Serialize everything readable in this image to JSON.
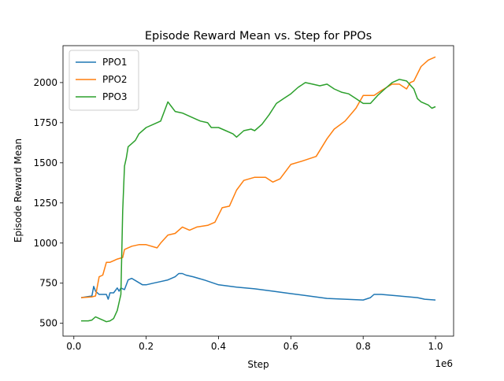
{
  "chart_data": {
    "type": "line",
    "title": "Episode Reward Mean vs. Step for PPOs",
    "xlabel": "Step",
    "ylabel": "Episode Reward Mean",
    "x_offset_label": "1e6",
    "xlim": [
      -0.03,
      1.05
    ],
    "ylim": [
      420,
      2230
    ],
    "xticks": [
      0.0,
      0.2,
      0.4,
      0.6,
      0.8,
      1.0
    ],
    "xtick_labels": [
      "0.0",
      "0.2",
      "0.4",
      "0.6",
      "0.8",
      "1.0"
    ],
    "yticks": [
      500,
      750,
      1000,
      1250,
      1500,
      1750,
      2000
    ],
    "ytick_labels": [
      "500",
      "750",
      "1000",
      "1250",
      "1500",
      "1750",
      "2000"
    ],
    "grid": false,
    "legend_position": "top-left",
    "series": [
      {
        "name": "PPO1",
        "color": "#1f77b4",
        "x": [
          0.02,
          0.05,
          0.055,
          0.06,
          0.07,
          0.08,
          0.09,
          0.095,
          0.1,
          0.11,
          0.12,
          0.125,
          0.13,
          0.14,
          0.15,
          0.16,
          0.175,
          0.19,
          0.2,
          0.22,
          0.24,
          0.26,
          0.28,
          0.29,
          0.3,
          0.31,
          0.33,
          0.36,
          0.4,
          0.45,
          0.5,
          0.55,
          0.6,
          0.65,
          0.7,
          0.75,
          0.8,
          0.82,
          0.83,
          0.85,
          0.9,
          0.95,
          0.97,
          1.0
        ],
        "y": [
          660,
          670,
          730,
          700,
          680,
          680,
          680,
          650,
          690,
          690,
          720,
          700,
          720,
          710,
          770,
          780,
          760,
          740,
          740,
          750,
          760,
          770,
          790,
          810,
          810,
          800,
          790,
          770,
          740,
          725,
          715,
          700,
          685,
          670,
          655,
          650,
          645,
          660,
          680,
          680,
          670,
          660,
          650,
          645
        ]
      },
      {
        "name": "PPO2",
        "color": "#ff7f0e",
        "x": [
          0.02,
          0.05,
          0.06,
          0.07,
          0.08,
          0.09,
          0.1,
          0.11,
          0.12,
          0.135,
          0.14,
          0.16,
          0.18,
          0.2,
          0.23,
          0.24,
          0.26,
          0.28,
          0.3,
          0.32,
          0.34,
          0.37,
          0.39,
          0.41,
          0.43,
          0.45,
          0.47,
          0.5,
          0.53,
          0.55,
          0.57,
          0.6,
          0.63,
          0.67,
          0.7,
          0.72,
          0.75,
          0.78,
          0.8,
          0.83,
          0.85,
          0.88,
          0.9,
          0.92,
          0.93,
          0.94,
          0.96,
          0.98,
          1.0
        ],
        "y": [
          660,
          665,
          670,
          790,
          800,
          880,
          880,
          890,
          900,
          910,
          960,
          980,
          990,
          990,
          970,
          1000,
          1050,
          1060,
          1100,
          1080,
          1100,
          1110,
          1130,
          1220,
          1230,
          1330,
          1390,
          1410,
          1410,
          1380,
          1400,
          1490,
          1510,
          1540,
          1650,
          1710,
          1760,
          1840,
          1920,
          1920,
          1950,
          1990,
          1990,
          1960,
          2000,
          2010,
          2100,
          2140,
          2160
        ]
      },
      {
        "name": "PPO3",
        "color": "#2ca02c",
        "x": [
          0.02,
          0.04,
          0.05,
          0.06,
          0.07,
          0.08,
          0.09,
          0.1,
          0.11,
          0.12,
          0.13,
          0.135,
          0.14,
          0.145,
          0.15,
          0.16,
          0.17,
          0.18,
          0.2,
          0.22,
          0.24,
          0.25,
          0.26,
          0.27,
          0.28,
          0.3,
          0.32,
          0.34,
          0.35,
          0.37,
          0.38,
          0.4,
          0.42,
          0.44,
          0.45,
          0.47,
          0.49,
          0.5,
          0.52,
          0.54,
          0.56,
          0.58,
          0.6,
          0.62,
          0.64,
          0.66,
          0.68,
          0.7,
          0.72,
          0.74,
          0.76,
          0.78,
          0.8,
          0.82,
          0.84,
          0.86,
          0.88,
          0.9,
          0.92,
          0.94,
          0.95,
          0.96,
          0.97,
          0.98,
          0.99,
          1.0
        ],
        "y": [
          515,
          515,
          520,
          540,
          530,
          520,
          510,
          515,
          530,
          580,
          680,
          1200,
          1480,
          1530,
          1600,
          1620,
          1640,
          1680,
          1720,
          1740,
          1760,
          1820,
          1880,
          1850,
          1820,
          1810,
          1790,
          1770,
          1760,
          1750,
          1720,
          1720,
          1700,
          1680,
          1660,
          1700,
          1710,
          1700,
          1740,
          1800,
          1870,
          1900,
          1930,
          1970,
          2000,
          1990,
          1980,
          1990,
          1960,
          1940,
          1930,
          1900,
          1870,
          1870,
          1920,
          1960,
          2000,
          2020,
          2010,
          1960,
          1900,
          1880,
          1870,
          1860,
          1840,
          1850
        ]
      }
    ]
  }
}
